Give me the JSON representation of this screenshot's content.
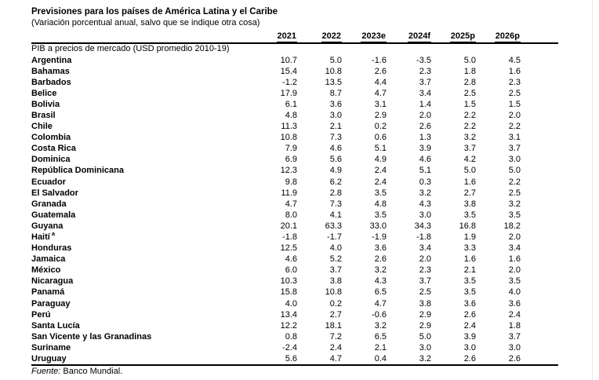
{
  "page": {
    "title": "Previsiones para los países de América Latina y el Caribe",
    "subtitle": "(Variación porcentual anual, salvo que se indique otra cosa)",
    "source_label": "Fuente:",
    "source_text": "Banco Mundial."
  },
  "table": {
    "section_header": "PIB a precios de mercado (USD promedio 2010-19)",
    "columns": [
      "2021",
      "2022",
      "2023e",
      "2024f",
      "2025p",
      "2026p"
    ],
    "rows": [
      {
        "country": "Argentina",
        "values": [
          "10.7",
          "5.0",
          "-1.6",
          "-3.5",
          "5.0",
          "4.5"
        ]
      },
      {
        "country": "Bahamas",
        "values": [
          "15.4",
          "10.8",
          "2.6",
          "2.3",
          "1.8",
          "1.6"
        ]
      },
      {
        "country": "Barbados",
        "values": [
          "-1.2",
          "13.5",
          "4.4",
          "3.7",
          "2.8",
          "2.3"
        ]
      },
      {
        "country": "Belice",
        "values": [
          "17.9",
          "8.7",
          "4.7",
          "3.4",
          "2.5",
          "2.5"
        ]
      },
      {
        "country": "Bolivia",
        "values": [
          "6.1",
          "3.6",
          "3.1",
          "1.4",
          "1.5",
          "1.5"
        ]
      },
      {
        "country": "Brasil",
        "values": [
          "4.8",
          "3.0",
          "2.9",
          "2.0",
          "2.2",
          "2.0"
        ]
      },
      {
        "country": "Chile",
        "values": [
          "11.3",
          "2.1",
          "0.2",
          "2.6",
          "2.2",
          "2.2"
        ]
      },
      {
        "country": "Colombia",
        "values": [
          "10.8",
          "7.3",
          "0.6",
          "1.3",
          "3.2",
          "3.1"
        ]
      },
      {
        "country": "Costa Rica",
        "values": [
          "7.9",
          "4.6",
          "5.1",
          "3.9",
          "3.7",
          "3.7"
        ]
      },
      {
        "country": "Dominica",
        "values": [
          "6.9",
          "5.6",
          "4.9",
          "4.6",
          "4.2",
          "3.0"
        ]
      },
      {
        "country": "República Dominicana",
        "values": [
          "12.3",
          "4.9",
          "2.4",
          "5.1",
          "5.0",
          "5.0"
        ]
      },
      {
        "country": "Ecuador",
        "values": [
          "9.8",
          "6.2",
          "2.4",
          "0.3",
          "1.6",
          "2.2"
        ]
      },
      {
        "country": "El Salvador",
        "values": [
          "11.9",
          "2.8",
          "3.5",
          "3.2",
          "2.7",
          "2.5"
        ]
      },
      {
        "country": "Granada",
        "values": [
          "4.7",
          "7.3",
          "4.8",
          "4.3",
          "3.8",
          "3.2"
        ]
      },
      {
        "country": "Guatemala",
        "values": [
          "8.0",
          "4.1",
          "3.5",
          "3.0",
          "3.5",
          "3.5"
        ]
      },
      {
        "country": "Guyana",
        "values": [
          "20.1",
          "63.3",
          "33.0",
          "34.3",
          "16.8",
          "18.2"
        ]
      },
      {
        "country": "Haití",
        "footnote": "a",
        "values": [
          "-1.8",
          "-1.7",
          "-1.9",
          "-1.8",
          "1.9",
          "2.0"
        ]
      },
      {
        "country": "Honduras",
        "values": [
          "12.5",
          "4.0",
          "3.6",
          "3.4",
          "3.3",
          "3.4"
        ]
      },
      {
        "country": "Jamaica",
        "values": [
          "4.6",
          "5.2",
          "2.6",
          "2.0",
          "1.6",
          "1.6"
        ]
      },
      {
        "country": "México",
        "values": [
          "6.0",
          "3.7",
          "3.2",
          "2.3",
          "2.1",
          "2.0"
        ]
      },
      {
        "country": "Nicaragua",
        "values": [
          "10.3",
          "3.8",
          "4.3",
          "3.7",
          "3.5",
          "3.5"
        ]
      },
      {
        "country": "Panamá",
        "values": [
          "15.8",
          "10.8",
          "6.5",
          "2.5",
          "3.5",
          "4.0"
        ]
      },
      {
        "country": "Paraguay",
        "values": [
          "4.0",
          "0.2",
          "4.7",
          "3.8",
          "3.6",
          "3.6"
        ]
      },
      {
        "country": "Perú",
        "values": [
          "13.4",
          "2.7",
          "-0.6",
          "2.9",
          "2.6",
          "2.4"
        ]
      },
      {
        "country": "Santa Lucía",
        "values": [
          "12.2",
          "18.1",
          "3.2",
          "2.9",
          "2.4",
          "1.8"
        ]
      },
      {
        "country": "San Vicente y las Granadinas",
        "values": [
          "0.8",
          "7.2",
          "6.5",
          "5.0",
          "3.9",
          "3.7"
        ]
      },
      {
        "country": "Suriname",
        "values": [
          "-2.4",
          "2.4",
          "2.1",
          "3.0",
          "3.0",
          "3.0"
        ]
      },
      {
        "country": "Uruguay",
        "values": [
          "5.6",
          "4.7",
          "0.4",
          "3.2",
          "2.6",
          "2.6"
        ]
      }
    ]
  },
  "colors": {
    "text": "#000000",
    "rule": "#000000",
    "page_edge_line": "#e8e8e8",
    "background": "#ffffff"
  }
}
